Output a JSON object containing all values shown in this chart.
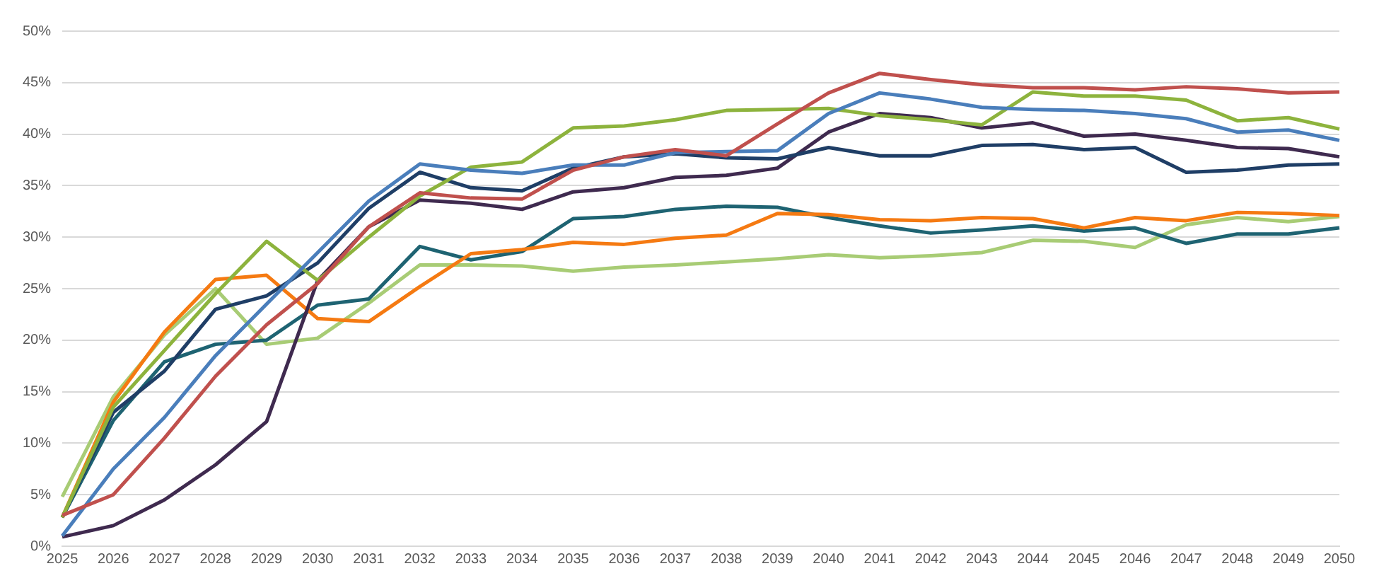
{
  "chart_data": {
    "type": "line",
    "categories": [
      "2025",
      "2026",
      "2027",
      "2028",
      "2029",
      "2030",
      "2031",
      "2032",
      "2033",
      "2034",
      "2035",
      "2036",
      "2037",
      "2038",
      "2039",
      "2040",
      "2041",
      "2042",
      "2043",
      "2044",
      "2045",
      "2046",
      "2047",
      "2048",
      "2049",
      "2050"
    ],
    "series": [
      {
        "color": "#c0504d",
        "values": [
          3,
          5,
          10.5,
          16.5,
          21.5,
          25.5,
          31,
          34.3,
          33.8,
          33.7,
          36.5,
          37.8,
          38.5,
          37.9,
          41,
          44,
          45.9,
          45.3,
          44.8,
          44.5,
          44.5,
          44.3,
          44.6,
          44.4,
          44,
          44.1
        ]
      },
      {
        "color": "#4a7ebb",
        "values": [
          1,
          7.5,
          12.5,
          18.5,
          23.5,
          28.5,
          33.5,
          37.1,
          36.5,
          36.2,
          37,
          37,
          38.2,
          38.3,
          38.4,
          42,
          44,
          43.4,
          42.6,
          42.4,
          42.3,
          42,
          41.5,
          40.2,
          40.4,
          39.4
        ]
      },
      {
        "color": "#8db33d",
        "values": [
          2.8,
          13.5,
          19,
          24.5,
          29.6,
          25.8,
          30,
          34,
          36.8,
          37.3,
          40.6,
          40.8,
          41.4,
          42.3,
          42.4,
          42.5,
          41.8,
          41.4,
          40.9,
          44.1,
          43.7,
          43.7,
          43.3,
          41.3,
          41.6,
          40.5
        ]
      },
      {
        "color": "#1f3e66",
        "values": [
          2.8,
          13,
          17,
          23,
          24.3,
          27.5,
          32.8,
          36.3,
          34.8,
          34.5,
          36.7,
          37.8,
          38.1,
          37.7,
          37.6,
          38.7,
          37.9,
          37.9,
          38.9,
          39,
          38.5,
          38.7,
          36.3,
          36.5,
          37,
          37.1
        ]
      },
      {
        "color": "#3f2a4f",
        "values": [
          0.9,
          2,
          4.5,
          7.9,
          12.1,
          25.8,
          31,
          33.6,
          33.3,
          32.7,
          34.4,
          34.8,
          35.8,
          36,
          36.7,
          40.2,
          42,
          41.6,
          40.6,
          41.1,
          39.8,
          40,
          39.4,
          38.7,
          38.6,
          37.8
        ]
      },
      {
        "color": "#f57a12",
        "values": [
          2.8,
          14,
          20.8,
          25.9,
          26.3,
          22.1,
          21.8,
          25.2,
          28.4,
          28.8,
          29.5,
          29.3,
          29.9,
          30.2,
          32.3,
          32.2,
          31.7,
          31.6,
          31.9,
          31.8,
          30.9,
          31.9,
          31.6,
          32.4,
          32.3,
          32.1
        ]
      },
      {
        "color": "#1e6372",
        "values": [
          2.8,
          12.2,
          17.9,
          19.6,
          20,
          23.4,
          24,
          29.1,
          27.8,
          28.6,
          31.8,
          32,
          32.7,
          33,
          32.9,
          31.9,
          31.1,
          30.4,
          30.7,
          31.1,
          30.6,
          30.9,
          29.4,
          30.3,
          30.3,
          30.9
        ]
      },
      {
        "color": "#a8cc75",
        "values": [
          4.8,
          14.5,
          20.5,
          25,
          19.6,
          20.2,
          23.6,
          27.3,
          27.3,
          27.2,
          26.7,
          27.1,
          27.3,
          27.6,
          27.9,
          28.3,
          28,
          28.2,
          28.5,
          29.7,
          29.6,
          29,
          31.2,
          31.9,
          31.5,
          32
        ]
      }
    ],
    "ylim": [
      0,
      50
    ],
    "yticks": [
      {
        "value": 0,
        "label": "0%"
      },
      {
        "value": 5,
        "label": "5%"
      },
      {
        "value": 10,
        "label": "10%"
      },
      {
        "value": 15,
        "label": "15%"
      },
      {
        "value": 20,
        "label": "20%"
      },
      {
        "value": 25,
        "label": "25%"
      },
      {
        "value": 30,
        "label": "30%"
      },
      {
        "value": 35,
        "label": "35%"
      },
      {
        "value": 40,
        "label": "40%"
      },
      {
        "value": 45,
        "label": "45%"
      },
      {
        "value": 50,
        "label": "50%"
      }
    ],
    "grid": "y"
  }
}
